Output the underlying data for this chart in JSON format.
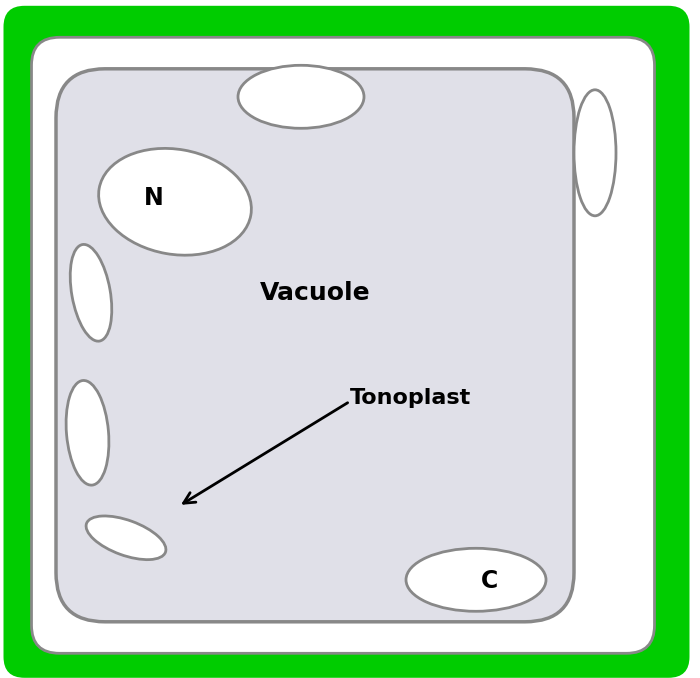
{
  "title": "",
  "background_color": "#ffffff",
  "cell_wall_color": "#00cc00",
  "cell_membrane_color": "#888888",
  "vacuole_fill": "#e0e0e8",
  "vacuole_outline": "#888888",
  "organelle_fill": "#ffffff",
  "organelle_outline": "#888888",
  "label_vacuole": "Vacuole",
  "label_tonoplast": "Tonoplast",
  "label_N": "N",
  "label_C": "C",
  "arrow_color": "#000000",
  "label_fontsize": 16,
  "label_fontweight": "bold"
}
